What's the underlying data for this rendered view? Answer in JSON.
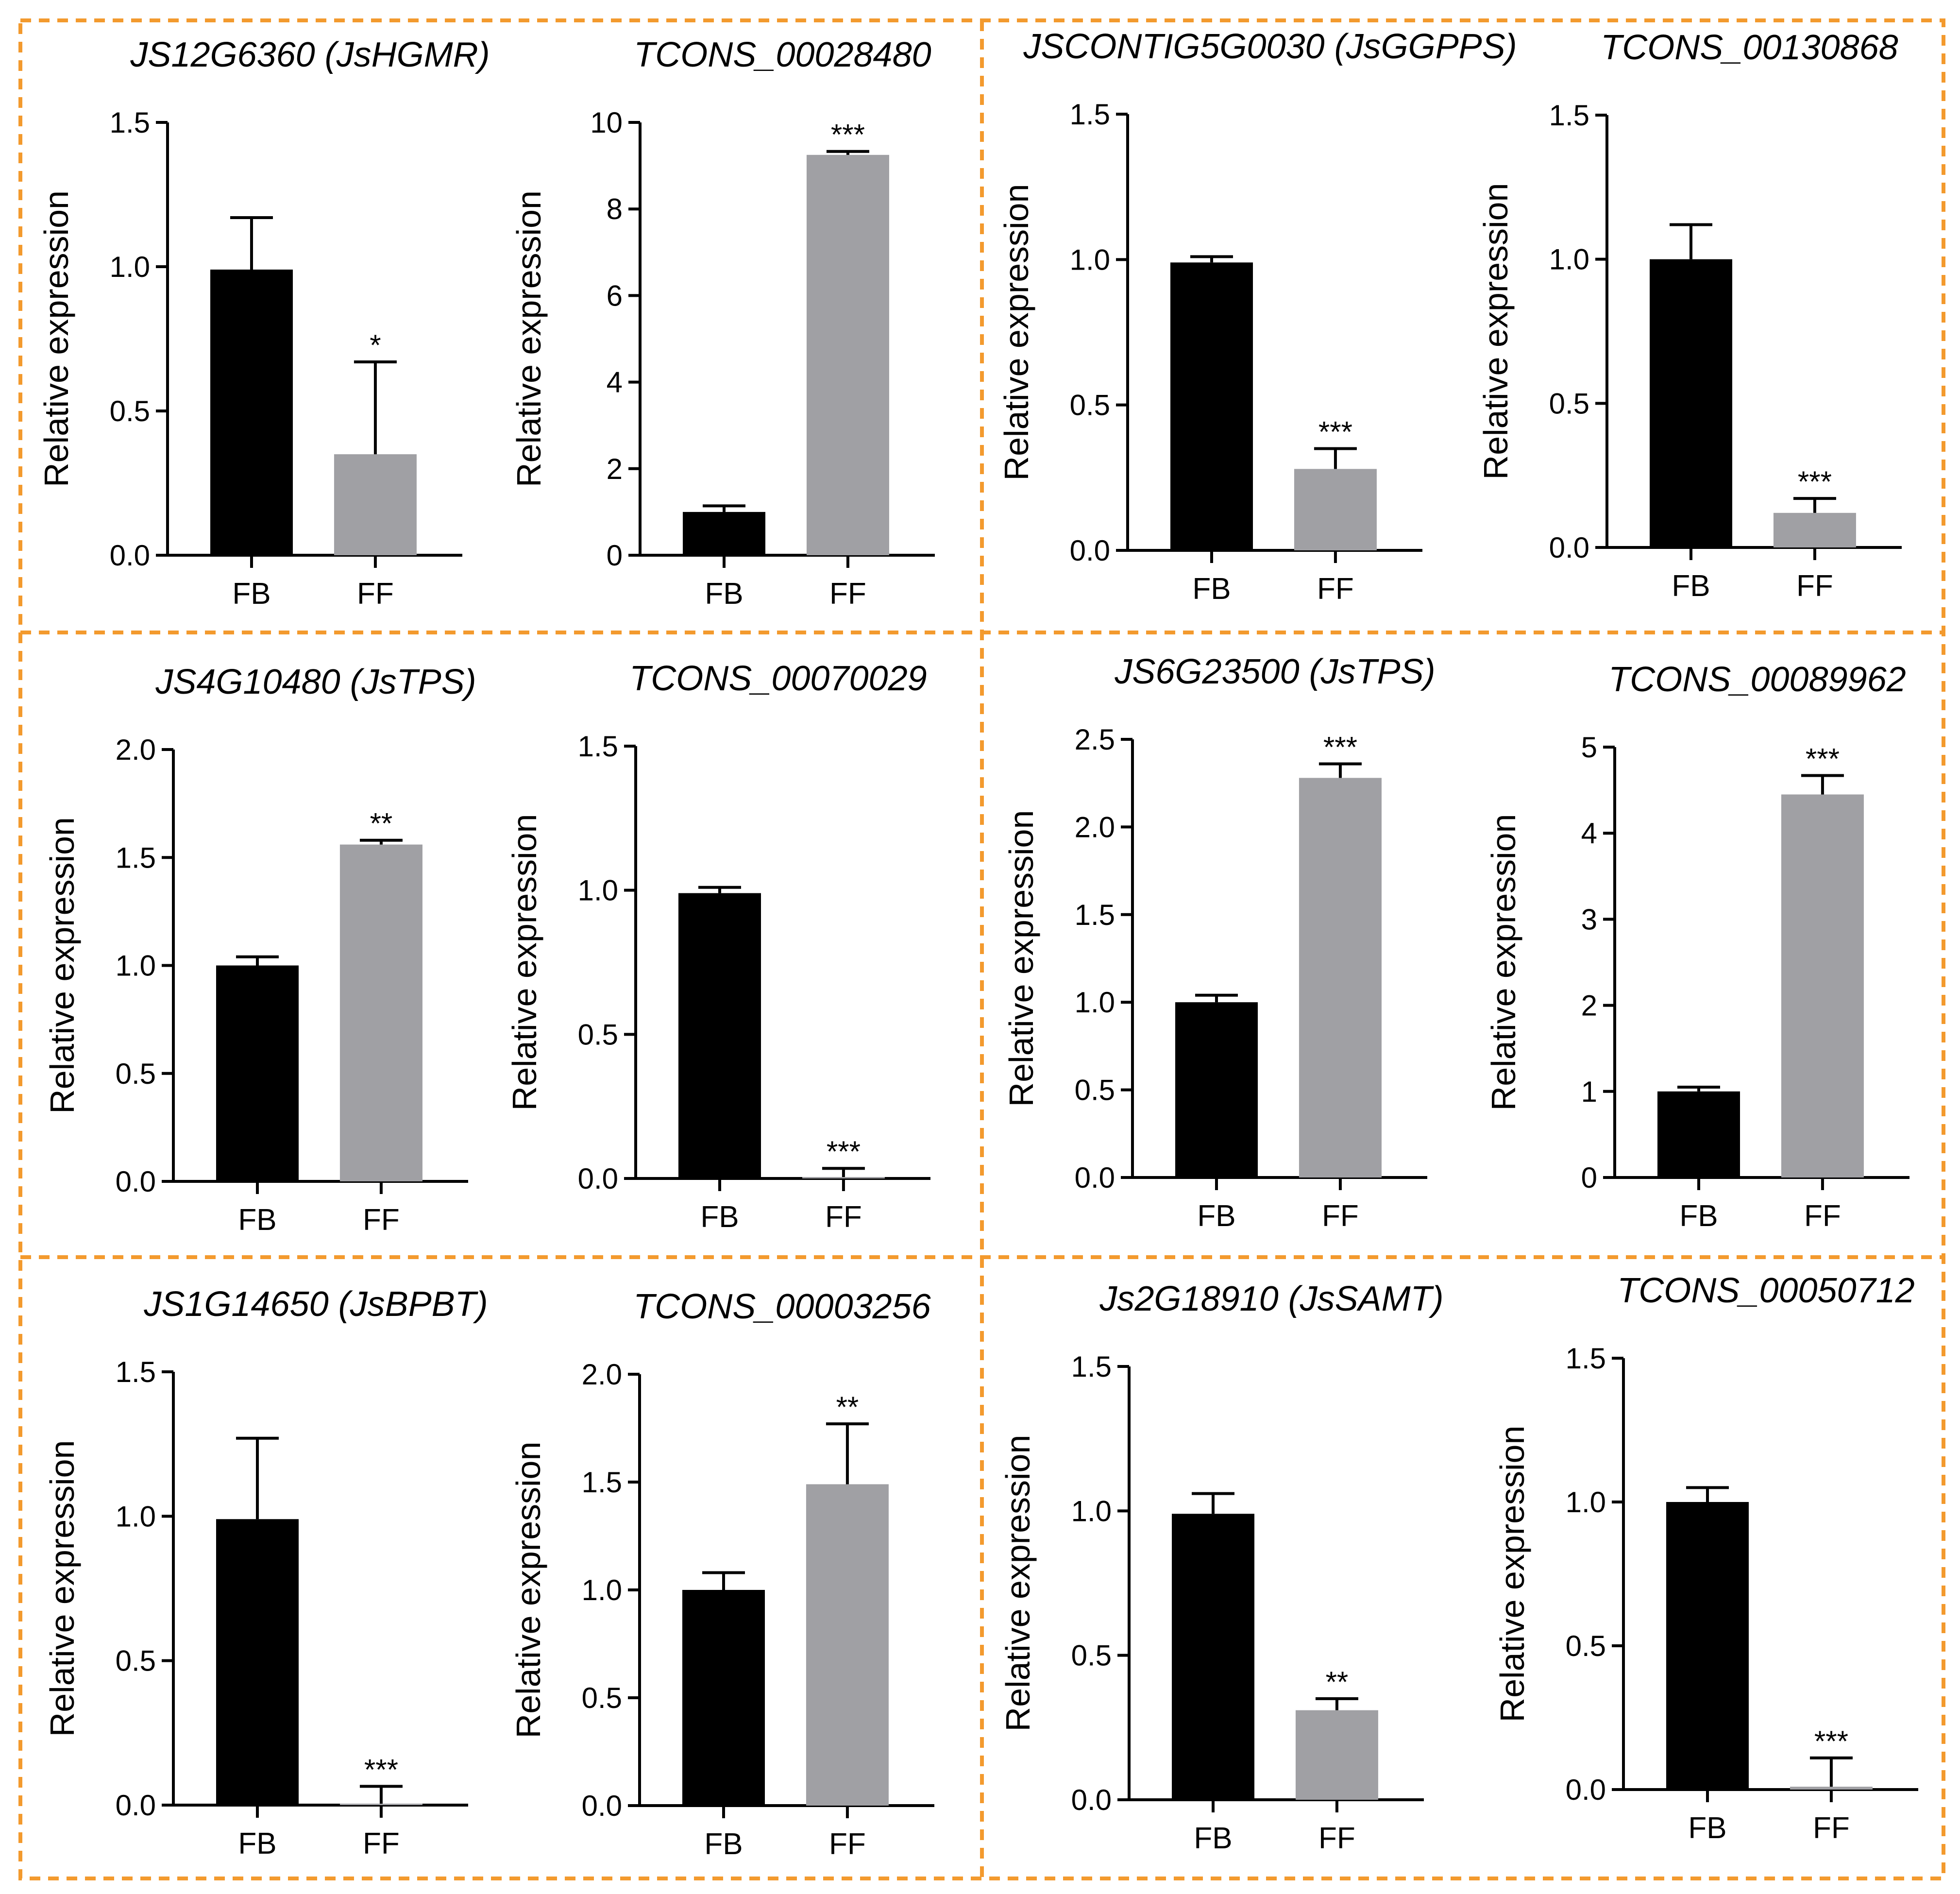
{
  "figure": {
    "ylabel": "Relative expression",
    "colors": {
      "FB": "#000000",
      "FF": "#a0a0a4",
      "separator": "#f39a2e"
    }
  },
  "chart_data": [
    {
      "type": "bar",
      "title": "JS12G6360 (JsHGMR)",
      "ylabel": "Relative expression",
      "categories": [
        "FB",
        "FF"
      ],
      "values": [
        0.99,
        0.35
      ],
      "errors": [
        0.18,
        0.32
      ],
      "significance": [
        "",
        "*"
      ],
      "ylim": [
        0,
        1.5
      ],
      "yticks": [
        0.0,
        0.5,
        1.0,
        1.5
      ],
      "ytick_labels": [
        "0.0",
        "0.5",
        "1.0",
        "1.5"
      ]
    },
    {
      "type": "bar",
      "title": "TCONS_00028480",
      "ylabel": "Relative expression",
      "categories": [
        "FB",
        "FF"
      ],
      "values": [
        1.0,
        9.25
      ],
      "errors": [
        0.14,
        0.08
      ],
      "significance": [
        "",
        "***"
      ],
      "ylim": [
        0,
        10
      ],
      "yticks": [
        0,
        2,
        4,
        6,
        8,
        10
      ],
      "ytick_labels": [
        "0",
        "2",
        "4",
        "6",
        "8",
        "10"
      ]
    },
    {
      "type": "bar",
      "title": "JSCONTIG5G0030 (JsGGPPS)",
      "ylabel": "Relative expression",
      "categories": [
        "FB",
        "FF"
      ],
      "values": [
        0.99,
        0.28
      ],
      "errors": [
        0.02,
        0.07
      ],
      "significance": [
        "",
        "***"
      ],
      "ylim": [
        0,
        1.5
      ],
      "yticks": [
        0.0,
        0.5,
        1.0,
        1.5
      ],
      "ytick_labels": [
        "0.0",
        "0.5",
        "1.0",
        "1.5"
      ]
    },
    {
      "type": "bar",
      "title": "TCONS_00130868",
      "ylabel": "Relative expression",
      "categories": [
        "FB",
        "FF"
      ],
      "values": [
        1.0,
        0.12
      ],
      "errors": [
        0.12,
        0.05
      ],
      "significance": [
        "",
        "***"
      ],
      "ylim": [
        0,
        1.5
      ],
      "yticks": [
        0.0,
        0.5,
        1.0,
        1.5
      ],
      "ytick_labels": [
        "0.0",
        "0.5",
        "1.0",
        "1.5"
      ]
    },
    {
      "type": "bar",
      "title": "JS4G10480 (JsTPS)",
      "ylabel": "Relative expression",
      "categories": [
        "FB",
        "FF"
      ],
      "values": [
        1.0,
        1.56
      ],
      "errors": [
        0.04,
        0.02
      ],
      "significance": [
        "",
        "**"
      ],
      "ylim": [
        0,
        2.0
      ],
      "yticks": [
        0.0,
        0.5,
        1.0,
        1.5,
        2.0
      ],
      "ytick_labels": [
        "0.0",
        "0.5",
        "1.0",
        "1.5",
        "2.0"
      ]
    },
    {
      "type": "bar",
      "title": "TCONS_00070029",
      "ylabel": "Relative expression",
      "categories": [
        "FB",
        "FF"
      ],
      "values": [
        0.99,
        0.005
      ],
      "errors": [
        0.02,
        0.03
      ],
      "significance": [
        "",
        "***"
      ],
      "ylim": [
        0,
        1.5
      ],
      "yticks": [
        0.0,
        0.5,
        1.0,
        1.5
      ],
      "ytick_labels": [
        "0.0",
        "0.5",
        "1.0",
        "1.5"
      ]
    },
    {
      "type": "bar",
      "title": "JS6G23500 (JsTPS)",
      "ylabel": "Relative expression",
      "categories": [
        "FB",
        "FF"
      ],
      "values": [
        1.0,
        2.28
      ],
      "errors": [
        0.04,
        0.08
      ],
      "significance": [
        "",
        "***"
      ],
      "ylim": [
        0,
        2.5
      ],
      "yticks": [
        0.0,
        0.5,
        1.0,
        1.5,
        2.0,
        2.5
      ],
      "ytick_labels": [
        "0.0",
        "0.5",
        "1.0",
        "1.5",
        "2.0",
        "2.5"
      ]
    },
    {
      "type": "bar",
      "title": "TCONS_00089962",
      "ylabel": "Relative expression",
      "categories": [
        "FB",
        "FF"
      ],
      "values": [
        1.0,
        4.45
      ],
      "errors": [
        0.05,
        0.22
      ],
      "significance": [
        "",
        "***"
      ],
      "ylim": [
        0,
        5
      ],
      "yticks": [
        0,
        1,
        2,
        3,
        4,
        5
      ],
      "ytick_labels": [
        "0",
        "1",
        "2",
        "3",
        "4",
        "5"
      ]
    },
    {
      "type": "bar",
      "title": "JS1G14650 (JsBPBT)",
      "ylabel": "Relative expression",
      "categories": [
        "FB",
        "FF"
      ],
      "values": [
        0.99,
        0.005
      ],
      "errors": [
        0.28,
        0.06
      ],
      "significance": [
        "",
        "***"
      ],
      "ylim": [
        0,
        1.5
      ],
      "yticks": [
        0.0,
        0.5,
        1.0,
        1.5
      ],
      "ytick_labels": [
        "0.0",
        "0.5",
        "1.0",
        "1.5"
      ]
    },
    {
      "type": "bar",
      "title": "TCONS_00003256",
      "ylabel": "Relative expression",
      "categories": [
        "FB",
        "FF"
      ],
      "values": [
        1.0,
        1.49
      ],
      "errors": [
        0.08,
        0.28
      ],
      "significance": [
        "",
        "**"
      ],
      "ylim": [
        0,
        2.0
      ],
      "yticks": [
        0.0,
        0.5,
        1.0,
        1.5,
        2.0
      ],
      "ytick_labels": [
        "0.0",
        "0.5",
        "1.0",
        "1.5",
        "2.0"
      ]
    },
    {
      "type": "bar",
      "title": "Js2G18910 (JsSAMT)",
      "ylabel": "Relative expression",
      "categories": [
        "FB",
        "FF"
      ],
      "values": [
        0.99,
        0.31
      ],
      "errors": [
        0.07,
        0.04
      ],
      "significance": [
        "",
        "**"
      ],
      "ylim": [
        0,
        1.5
      ],
      "yticks": [
        0.0,
        0.5,
        1.0,
        1.5
      ],
      "ytick_labels": [
        "0.0",
        "0.5",
        "1.0",
        "1.5"
      ]
    },
    {
      "type": "bar",
      "title": "TCONS_00050712",
      "ylabel": "Relative expression",
      "categories": [
        "FB",
        "FF"
      ],
      "values": [
        1.0,
        0.01
      ],
      "errors": [
        0.05,
        0.1
      ],
      "significance": [
        "",
        "***"
      ],
      "ylim": [
        0,
        1.5
      ],
      "yticks": [
        0.0,
        0.5,
        1.0,
        1.5
      ],
      "ytick_labels": [
        "0.0",
        "0.5",
        "1.0",
        "1.5"
      ]
    }
  ]
}
